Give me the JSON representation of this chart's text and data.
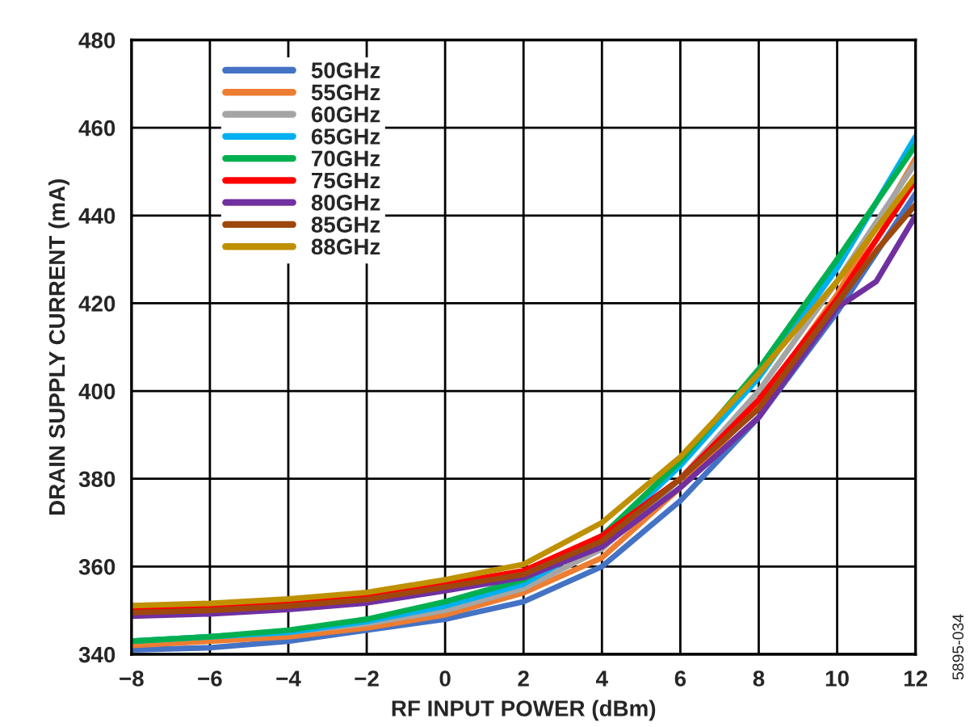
{
  "chart_data": {
    "type": "line",
    "xlabel": "RF INPUT POWER (dBm)",
    "ylabel": "DRAIN SUPPLY CURRENT (mA)",
    "x": [
      -8,
      -6,
      -4,
      -2,
      0,
      2,
      4,
      6,
      8,
      10,
      12
    ],
    "xlim": [
      -8,
      12
    ],
    "xticks": [
      {
        "value": -8,
        "label": "−8"
      },
      {
        "value": -6,
        "label": "−6"
      },
      {
        "value": -4,
        "label": "−4"
      },
      {
        "value": -2,
        "label": "−2"
      },
      0,
      2,
      4,
      6,
      8,
      10,
      12
    ],
    "ylim": [
      340,
      480
    ],
    "yticks": [
      340,
      360,
      380,
      400,
      420,
      440,
      460,
      480
    ],
    "grid": true,
    "legend": "top left",
    "line_style": "solid",
    "marker": "none",
    "annotations": [
      "5895-034"
    ],
    "series": [
      {
        "name": "50GHz",
        "color": "#4472c4",
        "values": [
          341,
          341.5,
          343,
          345.5,
          348,
          352,
          360,
          375,
          394,
          418,
          445
        ]
      },
      {
        "name": "55GHz",
        "color": "#ed7d31",
        "values": [
          342,
          343,
          344,
          346,
          349,
          354,
          362,
          378,
          397,
          422,
          453
        ]
      },
      {
        "name": "60GHz",
        "color": "#a5a5a5",
        "values": [
          343,
          344,
          345,
          347,
          350,
          355,
          364,
          380,
          400,
          425,
          452
        ]
      },
      {
        "name": "65GHz",
        "color": "#00b0f0",
        "values": [
          343,
          344,
          345,
          347.5,
          351,
          356,
          366,
          383,
          403,
          428,
          458
        ]
      },
      {
        "name": "70GHz",
        "color": "#00b050",
        "values": [
          343,
          344,
          345.5,
          348,
          352,
          357,
          367,
          384,
          405,
          430,
          456
        ]
      },
      {
        "name": "75GHz",
        "color": "#ff0000",
        "values": [
          350.3,
          350.8,
          351.8,
          353.3,
          356,
          359,
          367,
          380,
          398,
          421,
          448
        ]
      },
      {
        "name": "80GHz",
        "color": "#7030a0",
        "x": [
          -8,
          -6,
          -4,
          -2,
          0,
          2,
          4,
          6,
          8,
          10,
          11,
          12
        ],
        "values": [
          348.7,
          349.2,
          350.2,
          351.7,
          354.5,
          357.5,
          364.5,
          378,
          394,
          419,
          425,
          440
        ]
      },
      {
        "name": "85GHz",
        "color": "#9e480e",
        "x": [
          -8,
          -6,
          -4,
          -2,
          0,
          2,
          4,
          6,
          8,
          10,
          11,
          12
        ],
        "values": [
          349.5,
          350,
          351,
          352.5,
          355.3,
          358.2,
          365.8,
          380,
          396,
          420,
          432,
          442.5
        ]
      },
      {
        "name": "88GHz",
        "color": "#bf9000",
        "values": [
          351.1,
          351.6,
          352.6,
          354.1,
          357,
          360.5,
          370,
          385,
          404,
          425,
          449
        ]
      }
    ]
  }
}
